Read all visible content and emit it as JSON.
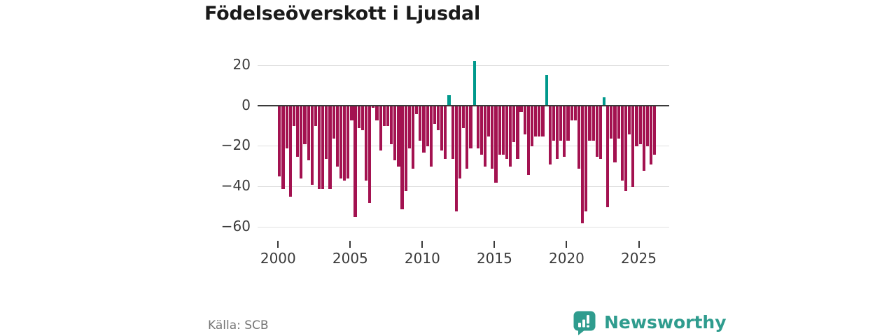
{
  "header": {
    "title": "Födelseöverskott i Ljusdal"
  },
  "footer": {
    "source": "Källa: SCB",
    "brand": "Newsworthy"
  },
  "colors": {
    "negative_bar": "#a31250",
    "positive_bar": "#00998c",
    "brand_teal": "#2f9c8e",
    "grid": "#e0e0e0",
    "zero_line": "#3a3a3a",
    "axis_text": "#3a3a3a",
    "source_text": "#757575",
    "title_text": "#1a1a1a"
  },
  "chart_data": {
    "type": "bar",
    "title": "Födelseöverskott i Ljusdal",
    "xlabel": "",
    "ylabel": "",
    "x_tick_labels": [
      "2000",
      "2005",
      "2010",
      "2015",
      "2020",
      "2025"
    ],
    "y_ticks": [
      20,
      0,
      -20,
      -40,
      -60
    ],
    "ylim": [
      -65,
      25
    ],
    "grid": "horizontal",
    "legend": "none",
    "frequency": "quarterly",
    "categories": [
      "2000Q1",
      "2000Q2",
      "2000Q3",
      "2000Q4",
      "2001Q1",
      "2001Q2",
      "2001Q3",
      "2001Q4",
      "2002Q1",
      "2002Q2",
      "2002Q3",
      "2002Q4",
      "2003Q1",
      "2003Q2",
      "2003Q3",
      "2003Q4",
      "2004Q1",
      "2004Q2",
      "2004Q3",
      "2004Q4",
      "2005Q1",
      "2005Q2",
      "2005Q3",
      "2005Q4",
      "2006Q1",
      "2006Q2",
      "2006Q3",
      "2006Q4",
      "2007Q1",
      "2007Q2",
      "2007Q3",
      "2007Q4",
      "2008Q1",
      "2008Q2",
      "2008Q3",
      "2008Q4",
      "2009Q1",
      "2009Q2",
      "2009Q3",
      "2009Q4",
      "2010Q1",
      "2010Q2",
      "2010Q3",
      "2010Q4",
      "2011Q1",
      "2011Q2",
      "2011Q3",
      "2011Q4",
      "2012Q1",
      "2012Q2",
      "2012Q3",
      "2012Q4",
      "2013Q1",
      "2013Q2",
      "2013Q3",
      "2013Q4",
      "2014Q1",
      "2014Q2",
      "2014Q3",
      "2014Q4",
      "2015Q1",
      "2015Q2",
      "2015Q3",
      "2015Q4",
      "2016Q1",
      "2016Q2",
      "2016Q3",
      "2016Q4",
      "2017Q1",
      "2017Q2",
      "2017Q3",
      "2017Q4",
      "2018Q1",
      "2018Q2",
      "2018Q3",
      "2018Q4",
      "2019Q1",
      "2019Q2",
      "2019Q3",
      "2019Q4",
      "2020Q1",
      "2020Q2",
      "2020Q3",
      "2020Q4",
      "2021Q1",
      "2021Q2",
      "2021Q3",
      "2021Q4",
      "2022Q1",
      "2022Q2",
      "2022Q3",
      "2022Q4",
      "2023Q1",
      "2023Q2",
      "2023Q3",
      "2023Q4",
      "2024Q1",
      "2024Q2",
      "2024Q3",
      "2024Q4",
      "2025Q1",
      "2025Q2",
      "2025Q3",
      "2025Q4",
      "2026Q1"
    ],
    "values": [
      -35,
      -41,
      -21,
      -45,
      -10,
      -25,
      -36,
      -19,
      -27,
      -39,
      -10,
      -41,
      -41,
      -26,
      -41,
      -16,
      -30,
      -36,
      -37,
      -36,
      -7,
      -55,
      -11,
      -12,
      -37,
      -48,
      -1,
      -7,
      -22,
      -10,
      -10,
      -19,
      -27,
      -30,
      -51,
      -42,
      -21,
      -31,
      -4,
      -17,
      -23,
      -20,
      -30,
      -9,
      -12,
      -22,
      -26,
      5,
      -26,
      -52,
      -36,
      -11,
      -31,
      -21,
      22,
      -21,
      -24,
      -30,
      -15,
      -31,
      -38,
      -24,
      -24,
      -26,
      -30,
      -18,
      -26,
      -3,
      -14,
      -34,
      -20,
      -15,
      -15,
      -15,
      15,
      -29,
      -17,
      -26,
      -17,
      -25,
      -17,
      -7,
      -7,
      -31,
      -58,
      -52,
      -17,
      -17,
      -25,
      -26,
      4,
      -50,
      -16,
      -28,
      -16,
      -37,
      -42,
      -14,
      -40,
      -20,
      -19,
      -32,
      -20,
      -29,
      -24
    ]
  }
}
